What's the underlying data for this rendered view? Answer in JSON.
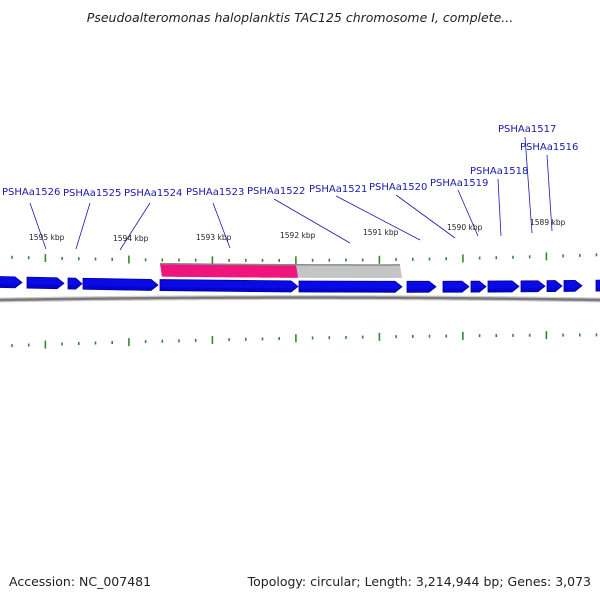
{
  "title": "Pseudoalteromonas haloplanktis TAC125 chromosome I, complete...",
  "footer": {
    "accession": "Accession: NC_007481",
    "summary": "Topology: circular; Length: 3,214,944 bp; Genes: 3,073"
  },
  "colors": {
    "gene": "#0a0ae6",
    "gene_shade": "#0000a0",
    "highlight": "#f0147d",
    "selection_grey": "#c4c4c4",
    "backbone": "#7a7a7a",
    "tick": "#2f8a2f",
    "label": "#1a1aa8"
  },
  "gene_labels": [
    {
      "text": "PSHAa1526"
    },
    {
      "text": "PSHAa1525"
    },
    {
      "text": "PSHAa1524"
    },
    {
      "text": "PSHAa1523"
    },
    {
      "text": "PSHAa1522"
    },
    {
      "text": "PSHAa1521"
    },
    {
      "text": "PSHAa1520"
    },
    {
      "text": "PSHAa1519"
    },
    {
      "text": "PSHAa1518"
    },
    {
      "text": "PSHAa1517"
    },
    {
      "text": "PSHAa1516"
    }
  ],
  "kbp_labels": [
    {
      "text": "1595 kbp"
    },
    {
      "text": "1594 kbp"
    },
    {
      "text": "1593 kbp"
    },
    {
      "text": "1592 kbp"
    },
    {
      "text": "1591 kbp"
    },
    {
      "text": "1590 kbp"
    },
    {
      "text": "1589 kbp"
    }
  ]
}
